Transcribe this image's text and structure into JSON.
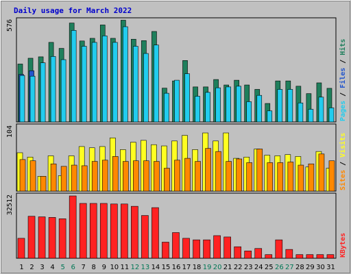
{
  "chart_data": [
    {
      "type": "bar",
      "title": "Daily usage for March 2022",
      "y_max_label": "576",
      "ylim": [
        0,
        576
      ],
      "legend": [
        {
          "label": "Hits",
          "color": "#1f7f5c"
        },
        {
          "label": "Files",
          "color": "#2255cc"
        },
        {
          "label": "Pages",
          "color": "#22ccee"
        }
      ],
      "categories": [
        "1",
        "2",
        "3",
        "4",
        "5",
        "6",
        "7",
        "8",
        "9",
        "10",
        "11",
        "12",
        "13",
        "14",
        "15",
        "16",
        "17",
        "18",
        "19",
        "20",
        "21",
        "22",
        "23",
        "24",
        "25",
        "26",
        "27",
        "28",
        "29",
        "30",
        "31"
      ],
      "series": [
        {
          "name": "Hits",
          "color": "#1f7f5c",
          "values": [
            329,
            362,
            370,
            452,
            418,
            562,
            460,
            475,
            551,
            475,
            578,
            470,
            462,
            514,
            192,
            233,
            349,
            199,
            199,
            241,
            210,
            237,
            210,
            185,
            105,
            233,
            233,
            203,
            161,
            222,
            191
          ]
        },
        {
          "name": "Files",
          "color": "#2255cc",
          "values": [
            270,
            291,
            0,
            0,
            0,
            0,
            0,
            0,
            0,
            0,
            0,
            0,
            0,
            0,
            0,
            0,
            0,
            0,
            0,
            0,
            0,
            0,
            0,
            0,
            0,
            0,
            0,
            0,
            0,
            0,
            0
          ]
        },
        {
          "name": "Pages",
          "color": "#22ccee",
          "values": [
            264,
            260,
            336,
            372,
            354,
            520,
            430,
            452,
            489,
            452,
            541,
            430,
            389,
            437,
            163,
            237,
            274,
            146,
            168,
            194,
            199,
            203,
            115,
            151,
            63,
            185,
            185,
            108,
            72,
            141,
            80
          ]
        }
      ]
    },
    {
      "type": "bar",
      "y_max_label": "104",
      "ylim": [
        0,
        104
      ],
      "legend": [
        {
          "label": "Visits",
          "color": "#ffff22"
        },
        {
          "label": "Sites",
          "color": "#ff8800"
        }
      ],
      "categories": [
        "1",
        "2",
        "3",
        "4",
        "5",
        "6",
        "7",
        "8",
        "9",
        "10",
        "11",
        "12",
        "13",
        "14",
        "15",
        "16",
        "17",
        "18",
        "19",
        "20",
        "21",
        "22",
        "23",
        "24",
        "25",
        "26",
        "27",
        "28",
        "29",
        "30",
        "31"
      ],
      "series": [
        {
          "name": "Visits",
          "color": "#ffff22",
          "values": [
            62,
            55,
            24,
            57,
            25,
            57,
            72,
            70,
            72,
            86,
            67,
            79,
            82,
            75,
            73,
            81,
            90,
            67,
            94,
            81,
            94,
            53,
            55,
            68,
            58,
            57,
            59,
            56,
            39,
            64,
            37
          ]
        },
        {
          "name": "Sites",
          "color": "#ff8800",
          "values": [
            51,
            49,
            24,
            44,
            40,
            42,
            41,
            48,
            50,
            56,
            48,
            49,
            49,
            48,
            37,
            50,
            53,
            48,
            69,
            64,
            48,
            52,
            46,
            68,
            46,
            46,
            47,
            42,
            44,
            60,
            49
          ]
        }
      ]
    },
    {
      "type": "bar",
      "y_max_label": "32512",
      "ylim": [
        0,
        32512
      ],
      "legend": [
        {
          "label": "KBytes",
          "color": "#ff2222"
        }
      ],
      "categories": [
        "1",
        "2",
        "3",
        "4",
        "5",
        "6",
        "7",
        "8",
        "9",
        "10",
        "11",
        "12",
        "13",
        "14",
        "15",
        "16",
        "17",
        "18",
        "19",
        "20",
        "21",
        "22",
        "23",
        "24",
        "25",
        "26",
        "27",
        "28",
        "29",
        "30",
        "31"
      ],
      "series": [
        {
          "name": "KBytes",
          "color": "#ff2222",
          "values": [
            10400,
            21900,
            21600,
            21300,
            20600,
            32512,
            28600,
            28600,
            28600,
            28300,
            28300,
            27100,
            22300,
            26400,
            8400,
            13400,
            10400,
            9600,
            9600,
            11800,
            11100,
            6000,
            3800,
            5100,
            1900,
            9600,
            4600,
            1900,
            1900,
            1900,
            1900
          ]
        }
      ]
    }
  ],
  "weekend_days": [
    5,
    6,
    12,
    13,
    19,
    20,
    26,
    27
  ],
  "colors": {
    "background": "#c0c0c0",
    "plot_bg": "#c0c0c0",
    "title": "#0000cc",
    "day_normal": "#000000",
    "day_weekend": "#007755"
  }
}
